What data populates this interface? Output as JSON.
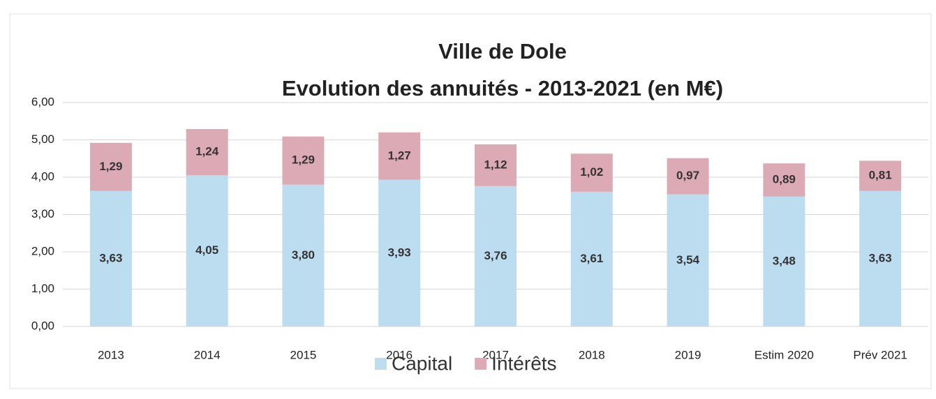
{
  "chart_data": {
    "type": "stacked_bar",
    "title": "Ville de Dole",
    "subtitle": "Evolution des annuités - 2013-2021 (en M€)",
    "categories": [
      "2013",
      "2014",
      "2015",
      "2016",
      "2017",
      "2018",
      "2019",
      "Estim 2020",
      "Prév 2021"
    ],
    "series": [
      {
        "name": "Capital",
        "color": "#bcdcf0",
        "values": [
          3.63,
          4.05,
          3.8,
          3.93,
          3.76,
          3.61,
          3.54,
          3.48,
          3.63
        ],
        "value_labels": [
          "3,63",
          "4,05",
          "3,80",
          "3,93",
          "3,76",
          "3,61",
          "3,54",
          "3,48",
          "3,63"
        ]
      },
      {
        "name": "Intérêts",
        "color": "#dcaab5",
        "values": [
          1.29,
          1.24,
          1.29,
          1.27,
          1.12,
          1.02,
          0.97,
          0.89,
          0.81
        ],
        "value_labels": [
          "1,29",
          "1,24",
          "1,29",
          "1,27",
          "1,12",
          "1,02",
          "0,97",
          "0,89",
          "0,81"
        ]
      }
    ],
    "ylim": [
      0,
      6
    ],
    "yticks": [
      {
        "value": 0,
        "label": "0,00"
      },
      {
        "value": 1,
        "label": "1,00"
      },
      {
        "value": 2,
        "label": "2,00"
      },
      {
        "value": 3,
        "label": "3,00"
      },
      {
        "value": 4,
        "label": "4,00"
      },
      {
        "value": 5,
        "label": "5,00"
      },
      {
        "value": 6,
        "label": "6,00"
      }
    ],
    "grid": true,
    "legend": "bottom"
  }
}
